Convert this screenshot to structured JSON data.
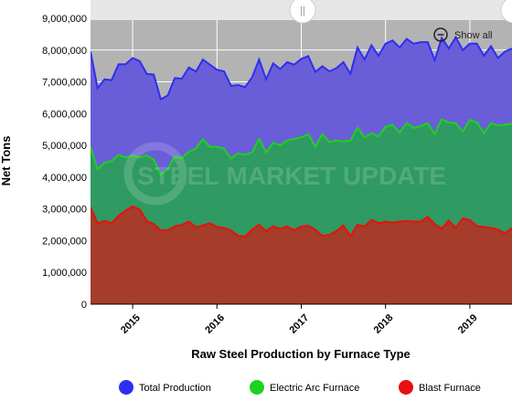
{
  "watermark": "STEEL MARKET UPDATE",
  "navigator": {
    "handle_glyph": "||",
    "show_all_label": "Show all"
  },
  "colors": {
    "total": "#2e2ef2",
    "total_fill": "#6a5ed8",
    "eaf": "#1ed21e",
    "eaf_fill": "#2f9a62",
    "blast": "#e81010",
    "blast_fill": "#a63c2a",
    "plot_bg": "#b3b3b3",
    "grid": "#ffffff"
  },
  "chart_data": {
    "type": "area",
    "title": "",
    "xlabel": "Raw Steel Production by Furnace Type",
    "ylabel": "Net Tons",
    "ylim": [
      0,
      9000000
    ],
    "y_ticks": [
      0,
      1000000,
      2000000,
      3000000,
      4000000,
      5000000,
      6000000,
      7000000,
      8000000,
      9000000
    ],
    "y_tick_labels": [
      "0",
      "1,000,000",
      "2,000,000",
      "3,000,000",
      "4,000,000",
      "5,000,000",
      "6,000,000",
      "7,000,000",
      "8,000,000",
      "9,000,000"
    ],
    "x_start": "2014-08",
    "x_end": "2019-08",
    "x_ticks": [
      {
        "label": "2015",
        "date": "2015-02"
      },
      {
        "label": "2016",
        "date": "2016-02"
      },
      {
        "label": "2017",
        "date": "2017-02"
      },
      {
        "label": "2018",
        "date": "2018-02"
      },
      {
        "label": "2019",
        "date": "2019-02"
      }
    ],
    "grid": true,
    "legend_position": "bottom",
    "series": [
      {
        "name": "Total Production",
        "color_key": "total",
        "values": [
          [
            "2014-08",
            7950000
          ],
          [
            "2014-09",
            6800000
          ],
          [
            "2014-10",
            7080000
          ],
          [
            "2014-11",
            7050000
          ],
          [
            "2014-12",
            7550000
          ],
          [
            "2015-01",
            7550000
          ],
          [
            "2015-02",
            7750000
          ],
          [
            "2015-03",
            7650000
          ],
          [
            "2015-04",
            7250000
          ],
          [
            "2015-05",
            7230000
          ],
          [
            "2015-06",
            6450000
          ],
          [
            "2015-07",
            6570000
          ],
          [
            "2015-08",
            7120000
          ],
          [
            "2015-09",
            7100000
          ],
          [
            "2015-10",
            7450000
          ],
          [
            "2015-11",
            7320000
          ],
          [
            "2015-12",
            7700000
          ],
          [
            "2016-01",
            7540000
          ],
          [
            "2016-02",
            7380000
          ],
          [
            "2016-03",
            7330000
          ],
          [
            "2016-04",
            6870000
          ],
          [
            "2016-05",
            6900000
          ],
          [
            "2016-06",
            6830000
          ],
          [
            "2016-07",
            7140000
          ],
          [
            "2016-08",
            7700000
          ],
          [
            "2016-09",
            7080000
          ],
          [
            "2016-10",
            7580000
          ],
          [
            "2016-11",
            7400000
          ],
          [
            "2016-12",
            7620000
          ],
          [
            "2017-01",
            7540000
          ],
          [
            "2017-02",
            7720000
          ],
          [
            "2017-03",
            7810000
          ],
          [
            "2017-04",
            7310000
          ],
          [
            "2017-05",
            7490000
          ],
          [
            "2017-06",
            7330000
          ],
          [
            "2017-07",
            7430000
          ],
          [
            "2017-08",
            7620000
          ],
          [
            "2017-09",
            7250000
          ],
          [
            "2017-10",
            8080000
          ],
          [
            "2017-11",
            7700000
          ],
          [
            "2017-12",
            8150000
          ],
          [
            "2018-01",
            7820000
          ],
          [
            "2018-02",
            8200000
          ],
          [
            "2018-03",
            8300000
          ],
          [
            "2018-04",
            8080000
          ],
          [
            "2018-05",
            8350000
          ],
          [
            "2018-06",
            8200000
          ],
          [
            "2018-07",
            8250000
          ],
          [
            "2018-08",
            8250000
          ],
          [
            "2018-09",
            7680000
          ],
          [
            "2018-10",
            8380000
          ],
          [
            "2018-11",
            8050000
          ],
          [
            "2018-12",
            8400000
          ],
          [
            "2019-01",
            8000000
          ],
          [
            "2019-02",
            8200000
          ],
          [
            "2019-03",
            8200000
          ],
          [
            "2019-04",
            7820000
          ],
          [
            "2019-05",
            8120000
          ],
          [
            "2019-06",
            7750000
          ],
          [
            "2019-07",
            7950000
          ],
          [
            "2019-08",
            8050000
          ]
        ]
      },
      {
        "name": "Electric Arc Furnace",
        "color_key": "eaf",
        "values": [
          [
            "2014-08",
            4950000
          ],
          [
            "2014-09",
            4250000
          ],
          [
            "2014-10",
            4450000
          ],
          [
            "2014-11",
            4500000
          ],
          [
            "2014-12",
            4700000
          ],
          [
            "2015-01",
            4620000
          ],
          [
            "2015-02",
            4680000
          ],
          [
            "2015-03",
            4620000
          ],
          [
            "2015-04",
            4680000
          ],
          [
            "2015-05",
            4550000
          ],
          [
            "2015-06",
            4080000
          ],
          [
            "2015-07",
            4250000
          ],
          [
            "2015-08",
            4650000
          ],
          [
            "2015-09",
            4600000
          ],
          [
            "2015-10",
            4800000
          ],
          [
            "2015-11",
            4900000
          ],
          [
            "2015-12",
            5200000
          ],
          [
            "2016-01",
            4950000
          ],
          [
            "2016-02",
            4950000
          ],
          [
            "2016-03",
            4900000
          ],
          [
            "2016-04",
            4580000
          ],
          [
            "2016-05",
            4750000
          ],
          [
            "2016-06",
            4700000
          ],
          [
            "2016-07",
            4780000
          ],
          [
            "2016-08",
            5200000
          ],
          [
            "2016-09",
            4780000
          ],
          [
            "2016-10",
            5080000
          ],
          [
            "2016-11",
            5000000
          ],
          [
            "2016-12",
            5150000
          ],
          [
            "2017-01",
            5200000
          ],
          [
            "2017-02",
            5250000
          ],
          [
            "2017-03",
            5350000
          ],
          [
            "2017-04",
            4950000
          ],
          [
            "2017-05",
            5350000
          ],
          [
            "2017-06",
            5100000
          ],
          [
            "2017-07",
            5150000
          ],
          [
            "2017-08",
            5120000
          ],
          [
            "2017-09",
            5150000
          ],
          [
            "2017-10",
            5550000
          ],
          [
            "2017-11",
            5250000
          ],
          [
            "2017-12",
            5380000
          ],
          [
            "2018-01",
            5280000
          ],
          [
            "2018-02",
            5580000
          ],
          [
            "2018-03",
            5650000
          ],
          [
            "2018-04",
            5400000
          ],
          [
            "2018-05",
            5700000
          ],
          [
            "2018-06",
            5550000
          ],
          [
            "2018-07",
            5600000
          ],
          [
            "2018-08",
            5700000
          ],
          [
            "2018-09",
            5350000
          ],
          [
            "2018-10",
            5820000
          ],
          [
            "2018-11",
            5720000
          ],
          [
            "2018-12",
            5700000
          ],
          [
            "2019-01",
            5430000
          ],
          [
            "2019-02",
            5800000
          ],
          [
            "2019-03",
            5720000
          ],
          [
            "2019-04",
            5380000
          ],
          [
            "2019-05",
            5700000
          ],
          [
            "2019-06",
            5620000
          ],
          [
            "2019-07",
            5650000
          ],
          [
            "2019-08",
            5680000
          ]
        ]
      },
      {
        "name": "Blast Furnace",
        "color_key": "blast",
        "values": [
          [
            "2014-08",
            3050000
          ],
          [
            "2014-09",
            2550000
          ],
          [
            "2014-10",
            2620000
          ],
          [
            "2014-11",
            2550000
          ],
          [
            "2014-12",
            2780000
          ],
          [
            "2015-01",
            2950000
          ],
          [
            "2015-02",
            3080000
          ],
          [
            "2015-03",
            2980000
          ],
          [
            "2015-04",
            2620000
          ],
          [
            "2015-05",
            2520000
          ],
          [
            "2015-06",
            2330000
          ],
          [
            "2015-07",
            2320000
          ],
          [
            "2015-08",
            2450000
          ],
          [
            "2015-09",
            2500000
          ],
          [
            "2015-10",
            2600000
          ],
          [
            "2015-11",
            2420000
          ],
          [
            "2015-12",
            2480000
          ],
          [
            "2016-01",
            2550000
          ],
          [
            "2016-02",
            2430000
          ],
          [
            "2016-03",
            2400000
          ],
          [
            "2016-04",
            2320000
          ],
          [
            "2016-05",
            2150000
          ],
          [
            "2016-06",
            2130000
          ],
          [
            "2016-07",
            2350000
          ],
          [
            "2016-08",
            2500000
          ],
          [
            "2016-09",
            2300000
          ],
          [
            "2016-10",
            2450000
          ],
          [
            "2016-11",
            2370000
          ],
          [
            "2016-12",
            2450000
          ],
          [
            "2017-01",
            2330000
          ],
          [
            "2017-02",
            2450000
          ],
          [
            "2017-03",
            2470000
          ],
          [
            "2017-04",
            2350000
          ],
          [
            "2017-05",
            2150000
          ],
          [
            "2017-06",
            2180000
          ],
          [
            "2017-07",
            2300000
          ],
          [
            "2017-08",
            2480000
          ],
          [
            "2017-09",
            2150000
          ],
          [
            "2017-10",
            2500000
          ],
          [
            "2017-11",
            2450000
          ],
          [
            "2017-12",
            2650000
          ],
          [
            "2018-01",
            2550000
          ],
          [
            "2018-02",
            2600000
          ],
          [
            "2018-03",
            2570000
          ],
          [
            "2018-04",
            2600000
          ],
          [
            "2018-05",
            2620000
          ],
          [
            "2018-06",
            2600000
          ],
          [
            "2018-07",
            2600000
          ],
          [
            "2018-08",
            2750000
          ],
          [
            "2018-09",
            2520000
          ],
          [
            "2018-10",
            2380000
          ],
          [
            "2018-11",
            2630000
          ],
          [
            "2018-12",
            2400000
          ],
          [
            "2019-01",
            2700000
          ],
          [
            "2019-02",
            2650000
          ],
          [
            "2019-03",
            2450000
          ],
          [
            "2019-04",
            2430000
          ],
          [
            "2019-05",
            2400000
          ],
          [
            "2019-06",
            2350000
          ],
          [
            "2019-07",
            2230000
          ],
          [
            "2019-08",
            2400000
          ]
        ]
      }
    ]
  }
}
